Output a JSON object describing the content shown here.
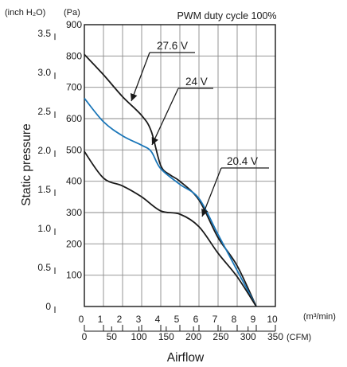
{
  "chart_data": {
    "type": "line",
    "title": "PWM duty cycle 100%",
    "ylabel": "Static pressure",
    "xlabel": "Airflow",
    "y_unit_inch": "(inch H₂O)",
    "y_unit_pa": "(Pa)",
    "x_unit_m3": "(m³/min)",
    "x_unit_cfm": "(CFM)",
    "ylim_pa": [
      0,
      900
    ],
    "xlim_m3": [
      0,
      10
    ],
    "xlim_cfm": [
      0,
      350
    ],
    "yticks_pa": [
      "900",
      "800",
      "700",
      "600",
      "500",
      "400",
      "300",
      "200",
      "100"
    ],
    "yticks_inch": [
      "3.5",
      "3.0",
      "2.5",
      "2.0",
      "1.5",
      "1.0",
      "0.5",
      "0"
    ],
    "xticks_m3": [
      "0",
      "1",
      "2",
      "3",
      "4",
      "5",
      "6",
      "7",
      "8",
      "9",
      "10"
    ],
    "xticks_cfm": [
      "0",
      "50",
      "100",
      "150",
      "200",
      "250",
      "300",
      "350"
    ],
    "grid": true,
    "series": [
      {
        "name": "27.6 V",
        "color": "#1a1a1a",
        "x": [
          0,
          1,
          2,
          3,
          3.5,
          4,
          4.5,
          5,
          6,
          7,
          8,
          9
        ],
        "y": [
          805,
          740,
          670,
          610,
          560,
          450,
          420,
          400,
          340,
          220,
          130,
          0
        ]
      },
      {
        "name": "24 V",
        "color": "#1a76b8",
        "x": [
          0,
          1,
          2,
          3,
          3.5,
          4,
          5,
          6,
          7,
          8,
          9
        ],
        "y": [
          665,
          590,
          545,
          515,
          495,
          440,
          390,
          345,
          230,
          115,
          0
        ]
      },
      {
        "name": "20.4 V",
        "color": "#1a1a1a",
        "x": [
          0,
          1,
          2,
          3,
          4,
          5,
          6,
          7,
          8,
          9
        ],
        "y": [
          495,
          410,
          385,
          350,
          305,
          295,
          255,
          170,
          95,
          0
        ]
      }
    ],
    "annotations": [
      "27.6 V",
      "24 V",
      "20.4 V"
    ]
  }
}
